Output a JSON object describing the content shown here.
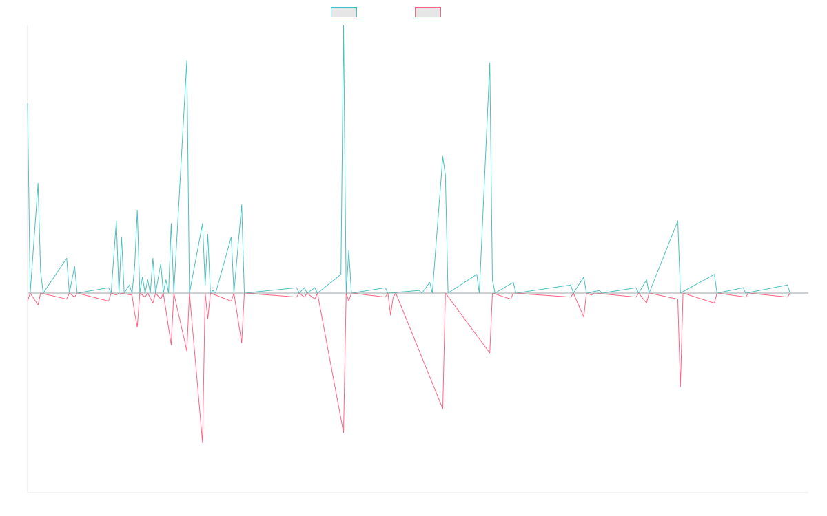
{
  "chart_data": {
    "type": "line",
    "title": "",
    "xlabel": "",
    "ylabel": "",
    "ylim": [
      -1,
      1
    ],
    "grid": false,
    "legend_position": "top-center",
    "series": [
      {
        "color": "#4bc0c0",
        "values": [
          [
            0,
            0.71
          ],
          [
            1,
            0.0
          ],
          [
            4,
            0.41
          ],
          [
            5,
            0.08
          ],
          [
            6,
            0.0
          ],
          [
            15,
            0.13
          ],
          [
            16,
            0.0
          ],
          [
            18,
            0.1
          ],
          [
            19,
            0.0
          ],
          [
            31,
            0.02
          ],
          [
            32,
            0.0
          ],
          [
            34,
            0.27
          ],
          [
            35,
            0.0
          ],
          [
            36,
            0.21
          ],
          [
            37,
            0.0
          ],
          [
            39,
            0.03
          ],
          [
            40,
            0.0
          ],
          [
            41,
            0.1
          ],
          [
            42,
            0.31
          ],
          [
            43,
            0.0
          ],
          [
            44,
            0.06
          ],
          [
            45,
            0.0
          ],
          [
            46,
            0.05
          ],
          [
            47,
            0.0
          ],
          [
            48,
            0.13
          ],
          [
            49,
            0.0
          ],
          [
            51,
            0.11
          ],
          [
            52,
            0.0
          ],
          [
            53,
            0.05
          ],
          [
            54,
            0.0
          ],
          [
            55,
            0.26
          ],
          [
            56,
            0.0
          ],
          [
            61,
            0.87
          ],
          [
            62,
            0.0
          ],
          [
            67,
            0.26
          ],
          [
            68,
            0.03
          ],
          [
            69,
            0.22
          ],
          [
            70,
            0.0
          ],
          [
            71,
            0.01
          ],
          [
            72,
            0.0
          ],
          [
            78,
            0.21
          ],
          [
            79,
            0.0
          ],
          [
            82,
            0.33
          ],
          [
            83,
            0.0
          ],
          [
            103,
            0.02
          ],
          [
            104,
            0.0
          ],
          [
            106,
            0.02
          ],
          [
            107,
            0.0
          ],
          [
            110,
            0.02
          ],
          [
            111,
            0.0
          ],
          [
            120,
            0.07
          ],
          [
            121,
            1.0
          ],
          [
            122,
            0.0
          ],
          [
            123,
            0.16
          ],
          [
            124,
            0.0
          ],
          [
            137,
            0.02
          ],
          [
            138,
            0.0
          ],
          [
            150,
            0.01
          ],
          [
            151,
            0.0
          ],
          [
            154,
            0.04
          ],
          [
            155,
            0.0
          ],
          [
            159,
            0.51
          ],
          [
            160,
            0.44
          ],
          [
            161,
            0.0
          ],
          [
            172,
            0.07
          ],
          [
            173,
            0.0
          ],
          [
            177,
            0.86
          ],
          [
            178,
            0.05
          ],
          [
            179,
            0.0
          ],
          [
            186,
            0.04
          ],
          [
            187,
            0.0
          ],
          [
            208,
            0.03
          ],
          [
            209,
            0.0
          ],
          [
            213,
            0.06
          ],
          [
            214,
            0.0
          ],
          [
            219,
            0.01
          ],
          [
            220,
            0.0
          ],
          [
            233,
            0.02
          ],
          [
            234,
            0.0
          ],
          [
            237,
            0.05
          ],
          [
            238,
            0.0
          ],
          [
            249,
            0.27
          ],
          [
            250,
            0.0
          ],
          [
            263,
            0.07
          ],
          [
            264,
            0.0
          ],
          [
            274,
            0.02
          ],
          [
            275,
            0.0
          ],
          [
            291,
            0.03
          ],
          [
            292,
            0.0
          ],
          [
            299,
            0.0
          ]
        ]
      },
      {
        "color": "#ff6384",
        "values": [
          [
            0,
            -0.04
          ],
          [
            1,
            0.0
          ],
          [
            4,
            -0.06
          ],
          [
            5,
            0.0
          ],
          [
            15,
            -0.03
          ],
          [
            16,
            0.0
          ],
          [
            18,
            -0.02
          ],
          [
            19,
            0.0
          ],
          [
            31,
            -0.04
          ],
          [
            32,
            0.0
          ],
          [
            34,
            -0.01
          ],
          [
            35,
            0.0
          ],
          [
            40,
            -0.01
          ],
          [
            41,
            -0.1
          ],
          [
            42,
            -0.17
          ],
          [
            43,
            0.0
          ],
          [
            45,
            -0.02
          ],
          [
            46,
            0.0
          ],
          [
            48,
            -0.05
          ],
          [
            49,
            0.0
          ],
          [
            51,
            -0.03
          ],
          [
            52,
            0.0
          ],
          [
            55,
            -0.26
          ],
          [
            56,
            0.0
          ],
          [
            61,
            -0.29
          ],
          [
            62,
            0.0
          ],
          [
            67,
            -0.75
          ],
          [
            68,
            0.0
          ],
          [
            69,
            -0.13
          ],
          [
            70,
            0.0
          ],
          [
            78,
            -0.04
          ],
          [
            79,
            0.0
          ],
          [
            82,
            -0.25
          ],
          [
            83,
            0.0
          ],
          [
            103,
            -0.02
          ],
          [
            104,
            0.0
          ],
          [
            106,
            -0.02
          ],
          [
            107,
            0.0
          ],
          [
            110,
            -0.03
          ],
          [
            111,
            0.0
          ],
          [
            121,
            -0.7
          ],
          [
            122,
            0.0
          ],
          [
            123,
            -0.04
          ],
          [
            124,
            0.0
          ],
          [
            137,
            -0.02
          ],
          [
            138,
            0.0
          ],
          [
            139,
            -0.11
          ],
          [
            140,
            -0.02
          ],
          [
            141,
            0.0
          ],
          [
            159,
            -0.58
          ],
          [
            160,
            0.0
          ],
          [
            177,
            -0.3
          ],
          [
            178,
            0.0
          ],
          [
            185,
            -0.03
          ],
          [
            186,
            0.0
          ],
          [
            208,
            -0.02
          ],
          [
            209,
            0.0
          ],
          [
            213,
            -0.12
          ],
          [
            214,
            0.0
          ],
          [
            216,
            -0.01
          ],
          [
            217,
            0.0
          ],
          [
            233,
            -0.02
          ],
          [
            234,
            0.0
          ],
          [
            237,
            -0.05
          ],
          [
            238,
            0.0
          ],
          [
            249,
            -0.03
          ],
          [
            250,
            -0.47
          ],
          [
            251,
            0.0
          ],
          [
            263,
            -0.05
          ],
          [
            264,
            0.0
          ],
          [
            275,
            -0.02
          ],
          [
            276,
            0.0
          ],
          [
            291,
            -0.02
          ],
          [
            292,
            0.0
          ],
          [
            299,
            0.0
          ]
        ]
      }
    ]
  }
}
